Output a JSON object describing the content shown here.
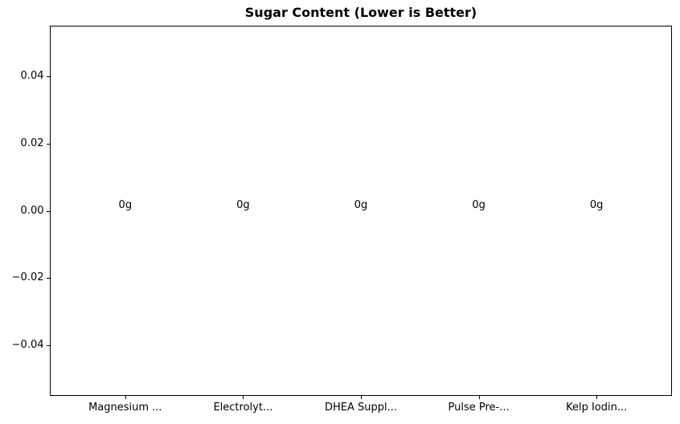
{
  "chart_data": {
    "type": "bar",
    "title": "Sugar Content (Lower is Better)",
    "categories": [
      "Magnesium ...",
      "Electrolyt...",
      "DHEA Suppl...",
      "Pulse Pre-...",
      "Kelp Iodin..."
    ],
    "values": [
      0,
      0,
      0,
      0,
      0
    ],
    "value_labels": [
      "0g",
      "0g",
      "0g",
      "0g",
      "0g"
    ],
    "xlabel": "",
    "ylabel": "",
    "ylim": [
      -0.055,
      0.055
    ],
    "xlim": [
      -0.64,
      4.64
    ],
    "yticks": [
      0.04,
      0.02,
      0.0,
      -0.02,
      -0.04
    ],
    "ytick_labels": [
      "0.04",
      "0.02",
      "0.00",
      "−0.02",
      "−0.04"
    ],
    "grid": false,
    "legend": null,
    "colors": {
      "background": "#ffffff",
      "frame": "#000000",
      "text": "#000000"
    }
  }
}
